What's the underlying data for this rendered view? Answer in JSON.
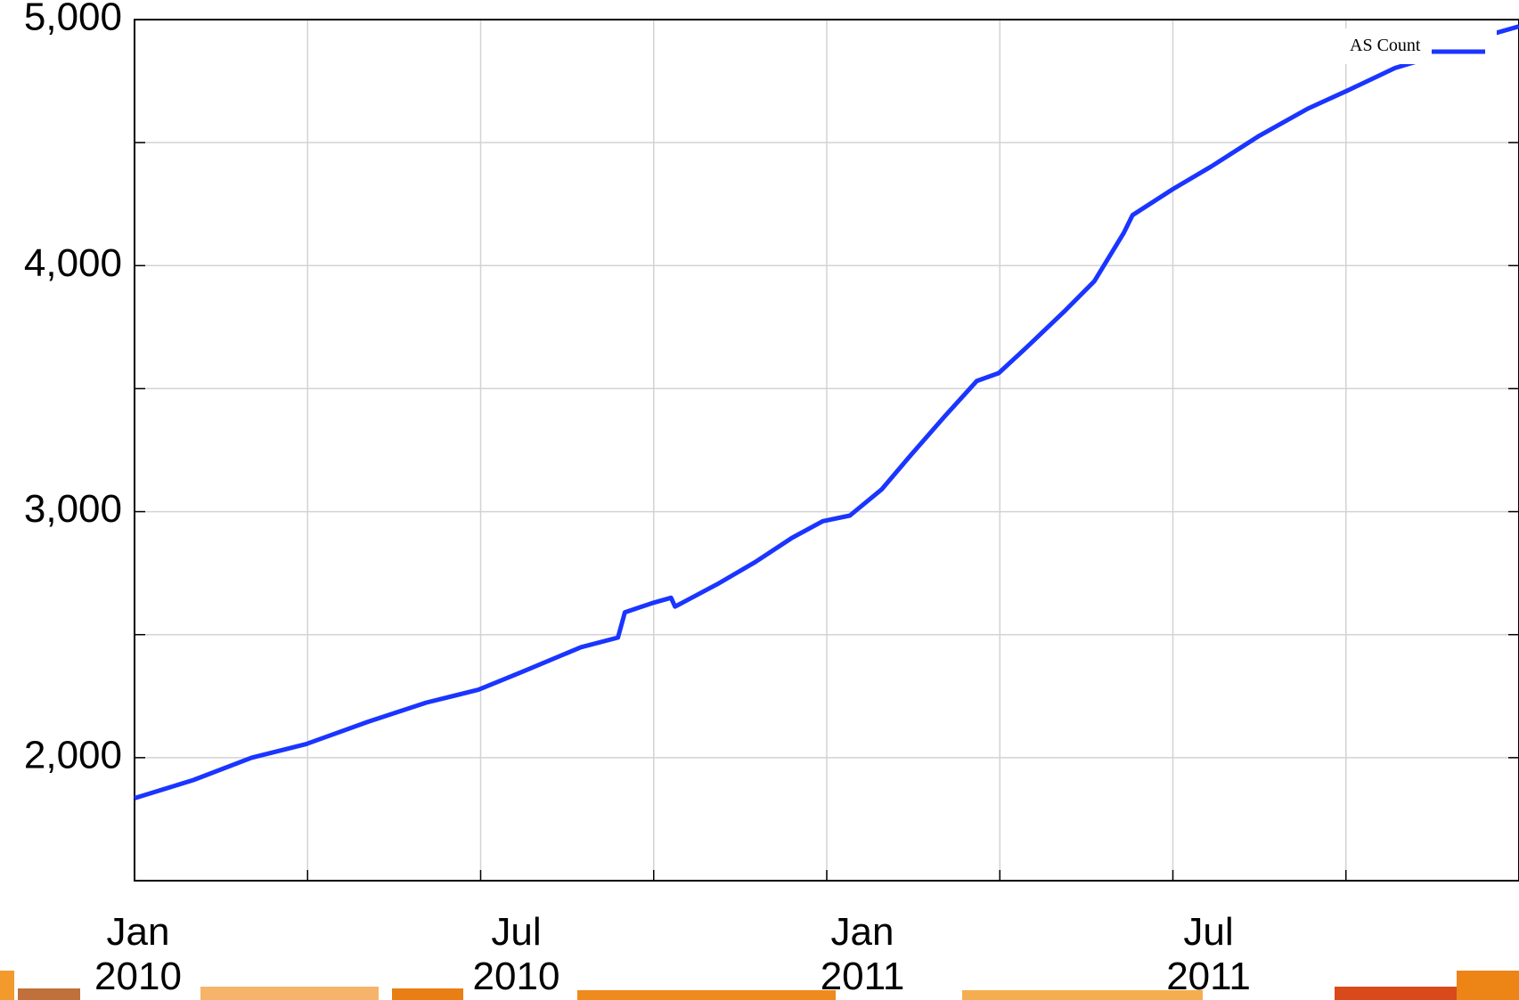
{
  "chart_data": {
    "type": "line",
    "series": [
      {
        "name": "AS Count",
        "color": "#1a35ff",
        "x": [
          0,
          1.02,
          2.03,
          2.97,
          4.05,
          5.06,
          5.96,
          6.73,
          7.74,
          8.38,
          8.5,
          9.0,
          9.3,
          9.37,
          10.1,
          10.76,
          11.4,
          11.93,
          12.4,
          12.95,
          13.45,
          14.04,
          14.6,
          14.98,
          15.47,
          16.14,
          16.64,
          17.15,
          17.3,
          18.0,
          18.66,
          19.5,
          20.34,
          21.04,
          21.85,
          22.86,
          23.53,
          24
        ],
        "values": [
          1835,
          1909,
          2000,
          2055,
          2146,
          2224,
          2276,
          2350,
          2449,
          2488,
          2591,
          2630,
          2650,
          2614,
          2705,
          2795,
          2894,
          2961,
          2984,
          3090,
          3228,
          3386,
          3531,
          3563,
          3669,
          3819,
          3937,
          4134,
          4205,
          4311,
          4402,
          4528,
          4638,
          4713,
          4803,
          4874,
          4941,
          4972
        ]
      }
    ],
    "xlim": [
      0,
      24
    ],
    "xticks": [
      {
        "value": 0,
        "label": "Jan\n2010"
      },
      {
        "value": 6,
        "label": "Jul\n2010"
      },
      {
        "value": 12,
        "label": "Jan\n2011"
      },
      {
        "value": 18,
        "label": "Jul\n2011"
      }
    ],
    "xminor": [
      3,
      9,
      15,
      21
    ],
    "ylim": [
      1500,
      5000
    ],
    "yticks": [
      {
        "value": 2000,
        "label": "2,000"
      },
      {
        "value": 3000,
        "label": "3,000"
      },
      {
        "value": 4000,
        "label": "4,000"
      },
      {
        "value": 5000,
        "label": "5,000"
      }
    ],
    "yminor": [
      2500,
      3500,
      4500
    ],
    "grid": true,
    "legend": "upper right"
  }
}
